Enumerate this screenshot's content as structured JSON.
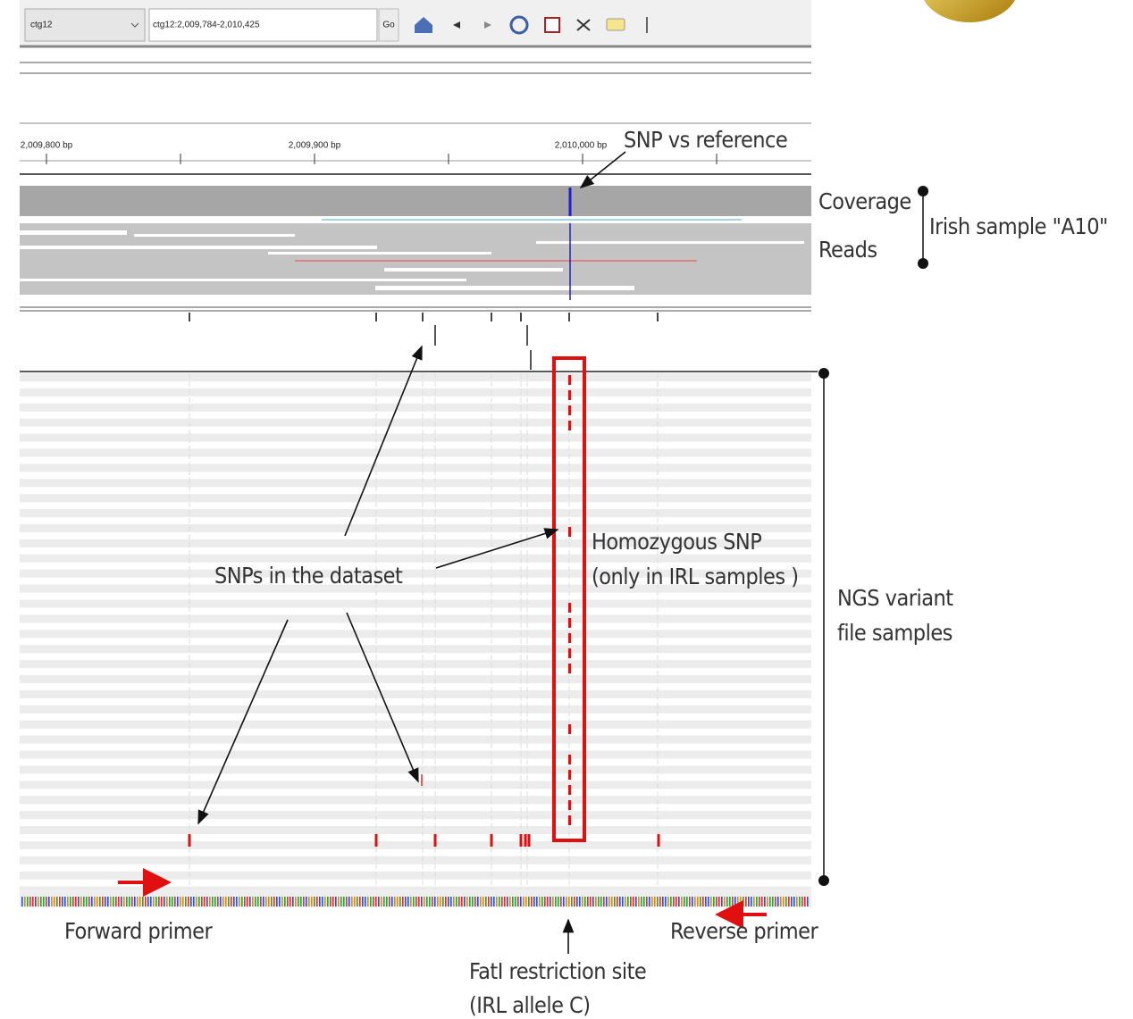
{
  "toolbar": {
    "chromosome": "ctg12",
    "locus": "ctg12:2,009,784-2,010,425",
    "go": "Go"
  },
  "ruler": {
    "labels": [
      "2,009,800 bp",
      "2,009,900 bp",
      "2,010,000 bp"
    ]
  },
  "annotations": {
    "snp_vs_reference": "SNP vs reference",
    "coverage": "Coverage",
    "reads": "Reads",
    "irish_sample": "Irish sample \"A10\"",
    "snps_in_dataset": "SNPs in the dataset",
    "homozygous_snp": [
      "Homozygous SNP",
      "(only in IRL samples )"
    ],
    "ngs_variant": [
      "NGS variant",
      "file samples"
    ],
    "forward_primer": "Forward primer",
    "reverse_primer": "Reverse primer",
    "fatl_site": [
      "FatI restriction site",
      "(IRL allele C)"
    ]
  }
}
